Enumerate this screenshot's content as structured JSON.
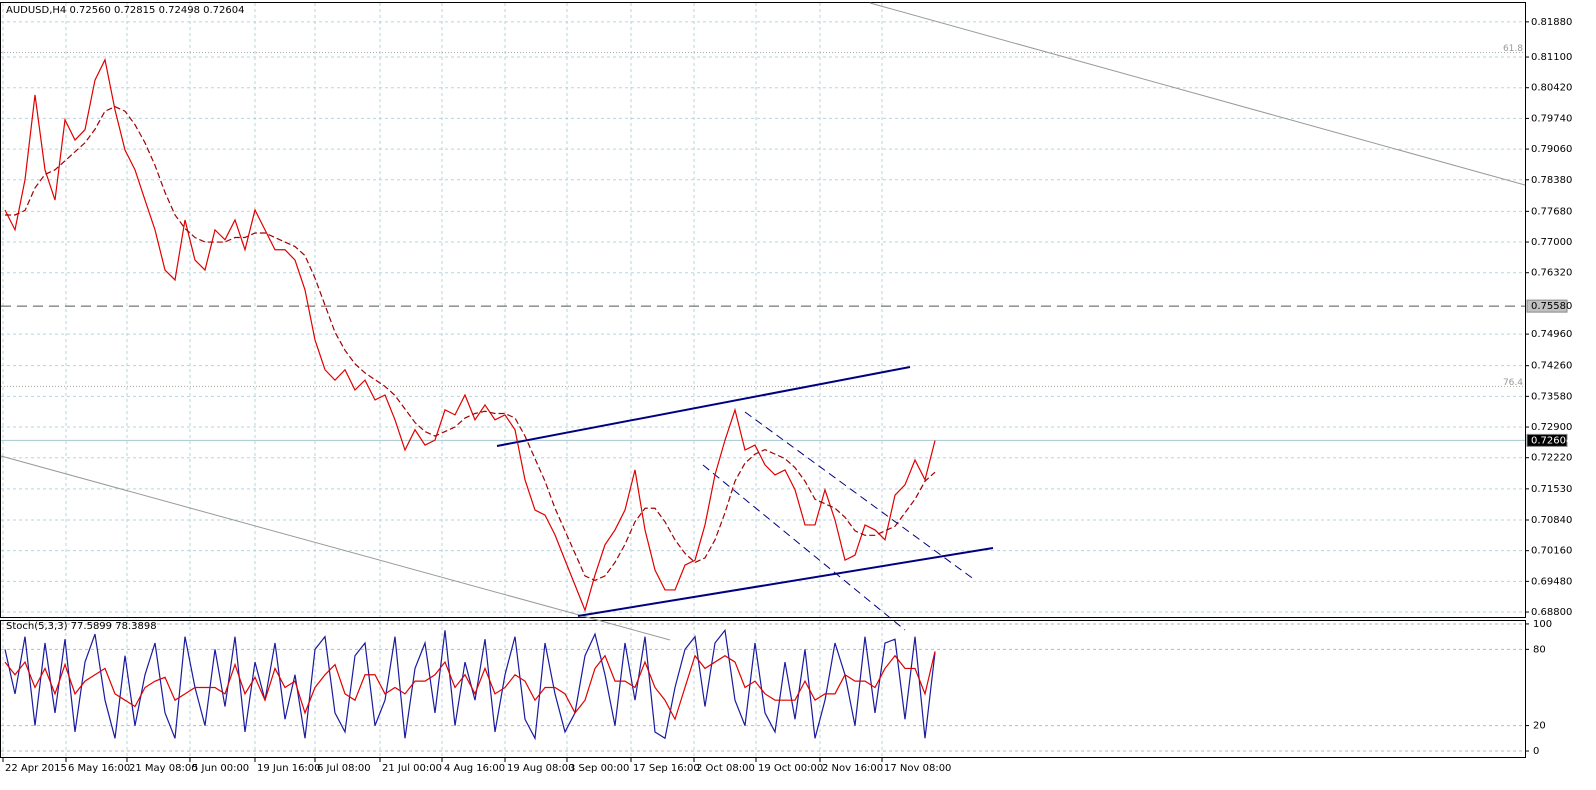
{
  "header": {
    "symbol": "AUDUSD,H4",
    "ohlc": [
      "0.72560",
      "0.72815",
      "0.72498",
      "0.72604"
    ]
  },
  "chart_data": [
    {
      "type": "line",
      "series": [
        {
          "color": "#e00000",
          "style": "solid",
          "values": [
            0.7771,
            0.7727,
            0.7838,
            0.8026,
            0.786,
            0.7793,
            0.7971,
            0.7926,
            0.7949,
            0.8059,
            0.8104,
            0.7993,
            0.7904,
            0.786,
            0.7793,
            0.7727,
            0.7638,
            0.7616,
            0.7749,
            0.766,
            0.7638,
            0.7727,
            0.7705,
            0.7749,
            0.7683,
            0.7771,
            0.7727,
            0.7683,
            0.7683,
            0.766,
            0.7594,
            0.7483,
            0.7417,
            0.7394,
            0.7417,
            0.7372,
            0.7394,
            0.735,
            0.7361,
            0.7306,
            0.7239,
            0.7284,
            0.725,
            0.7261,
            0.7328,
            0.7317,
            0.7361,
            0.7306,
            0.7339,
            0.7306,
            0.7317,
            0.7284,
            0.7173,
            0.7106,
            0.7095,
            0.7051,
            0.6995,
            0.694,
            0.6884,
            0.6962,
            0.7029,
            0.7062,
            0.7106,
            0.7195,
            0.7062,
            0.6973,
            0.6929,
            0.6929,
            0.6984,
            0.6995,
            0.7073,
            0.7184,
            0.7261,
            0.7328,
            0.7239,
            0.725,
            0.7206,
            0.7184,
            0.7195,
            0.7151,
            0.7073,
            0.7073,
            0.7151,
            0.7084,
            0.6995,
            0.7006,
            0.7073,
            0.7062,
            0.704,
            0.7139,
            0.7162,
            0.7217,
            0.7173,
            0.726
          ]
        },
        {
          "color": "#a00000",
          "style": "dashed",
          "values": [
            0.776,
            0.776,
            0.777,
            0.782,
            0.785,
            0.786,
            0.788,
            0.79,
            0.792,
            0.795,
            0.799,
            0.8,
            0.799,
            0.796,
            0.792,
            0.787,
            0.781,
            0.776,
            0.773,
            0.771,
            0.77,
            0.77,
            0.77,
            0.771,
            0.771,
            0.772,
            0.772,
            0.771,
            0.77,
            0.769,
            0.767,
            0.762,
            0.756,
            0.75,
            0.746,
            0.743,
            0.741,
            0.7395,
            0.738,
            0.736,
            0.733,
            0.73,
            0.728,
            0.727,
            0.728,
            0.729,
            0.731,
            0.732,
            0.7325,
            0.732,
            0.732,
            0.731,
            0.727,
            0.722,
            0.717,
            0.711,
            0.706,
            0.701,
            0.696,
            0.695,
            0.696,
            0.699,
            0.703,
            0.708,
            0.711,
            0.711,
            0.708,
            0.704,
            0.701,
            0.699,
            0.7,
            0.704,
            0.71,
            0.717,
            0.721,
            0.723,
            0.724,
            0.723,
            0.722,
            0.72,
            0.717,
            0.713,
            0.712,
            0.711,
            0.709,
            0.706,
            0.705,
            0.705,
            0.706,
            0.707,
            0.71,
            0.713,
            0.717,
            0.719
          ]
        }
      ],
      "xlim": [
        -0.5,
        152
      ],
      "xticks": [
        {
          "value": -0.2,
          "label": "22 Apr 2015"
        },
        {
          "value": 6.1,
          "label": "6 May 16:00"
        },
        {
          "value": 12.2,
          "label": "21 May 08:00"
        },
        {
          "value": 18.5,
          "label": "5 Jun 00:00"
        },
        {
          "value": 25,
          "label": "19 Jun 16:00"
        },
        {
          "value": 31,
          "label": "6 Jul 08:00"
        },
        {
          "value": 37.5,
          "label": "21 Jul 00:00"
        },
        {
          "value": 43.7,
          "label": "4 Aug 16:00"
        },
        {
          "value": 50,
          "label": "19 Aug 08:00"
        },
        {
          "value": 56.2,
          "label": "3 Sep 00:00"
        },
        {
          "value": 62.6,
          "label": "17 Sep 16:00"
        },
        {
          "value": 68.9,
          "label": "2 Oct 08:00"
        },
        {
          "value": 75.1,
          "label": "19 Oct 00:00"
        },
        {
          "value": 81.5,
          "label": "2 Nov 16:00"
        },
        {
          "value": 87.7,
          "label": "17 Nov 08:00"
        }
      ],
      "ylim": [
        0.6869,
        0.8232
      ],
      "yticks": [
        {
          "value": 0.8188,
          "label": "0.81880"
        },
        {
          "value": 0.811,
          "label": "0.81100"
        },
        {
          "value": 0.8042,
          "label": "0.80420"
        },
        {
          "value": 0.7974,
          "label": "0.79740"
        },
        {
          "value": 0.7906,
          "label": "0.79060"
        },
        {
          "value": 0.7838,
          "label": "0.78380"
        },
        {
          "value": 0.7768,
          "label": "0.77680"
        },
        {
          "value": 0.77,
          "label": "0.77000"
        },
        {
          "value": 0.7632,
          "label": "0.76320"
        },
        {
          "value": 0.7496,
          "label": "0.74960"
        },
        {
          "value": 0.7426,
          "label": "0.74260"
        },
        {
          "value": 0.7358,
          "label": "0.73580"
        },
        {
          "value": 0.729,
          "label": "0.72900"
        },
        {
          "value": 0.7222,
          "label": "0.72220"
        },
        {
          "value": 0.7153,
          "label": "0.71530"
        },
        {
          "value": 0.7084,
          "label": "0.70840"
        },
        {
          "value": 0.7016,
          "label": "0.70160"
        },
        {
          "value": 0.6948,
          "label": "0.69480"
        },
        {
          "value": 0.688,
          "label": "0.68800"
        }
      ],
      "grid": true,
      "level_line": {
        "value": 0.7558,
        "label": "0.75580"
      },
      "price_line": {
        "value": 0.72604,
        "label": "0.72604"
      },
      "fibo": [
        {
          "level": 61.8,
          "price": 0.812
        },
        {
          "level": 76.4,
          "price": 0.738
        }
      ]
    },
    {
      "type": "line",
      "title": "Stoch(5,3,3)",
      "series": [
        {
          "color": "#1a1aa0",
          "style": "solid",
          "values": [
            80,
            45,
            90,
            20,
            85,
            30,
            88,
            15,
            70,
            92,
            40,
            10,
            75,
            20,
            60,
            85,
            30,
            10,
            90,
            50,
            20,
            80,
            35,
            90,
            15,
            70,
            40,
            85,
            25,
            60,
            10,
            80,
            90,
            30,
            15,
            75,
            85,
            20,
            40,
            90,
            10,
            65,
            85,
            30,
            95,
            20,
            70,
            40,
            88,
            15,
            60,
            90,
            25,
            10,
            85,
            45,
            15,
            30,
            75,
            92,
            60,
            20,
            85,
            40,
            90,
            15,
            10,
            50,
            80,
            90,
            35,
            85,
            95,
            40,
            20,
            85,
            30,
            15,
            70,
            25,
            80,
            10,
            40,
            85,
            60,
            20,
            90,
            30,
            85,
            88,
            25,
            90,
            10,
            77.5899
          ]
        },
        {
          "color": "#e00000",
          "style": "solid",
          "values": [
            70,
            60,
            70,
            50,
            65,
            45,
            68,
            45,
            55,
            60,
            65,
            45,
            40,
            35,
            50,
            55,
            58,
            40,
            45,
            50,
            50,
            50,
            45,
            68,
            45,
            58,
            40,
            65,
            50,
            55,
            30,
            50,
            60,
            68,
            45,
            40,
            60,
            60,
            45,
            50,
            45,
            55,
            55,
            60,
            70,
            50,
            60,
            45,
            65,
            45,
            50,
            60,
            55,
            40,
            50,
            50,
            45,
            30,
            40,
            65,
            75,
            55,
            55,
            50,
            70,
            50,
            40,
            25,
            50,
            75,
            65,
            70,
            75,
            70,
            50,
            55,
            45,
            40,
            40,
            40,
            55,
            40,
            45,
            45,
            60,
            55,
            55,
            50,
            65,
            75,
            65,
            65,
            45,
            78.3898
          ]
        }
      ],
      "ylim": [
        -4.7,
        103.1
      ],
      "yticks": [
        100,
        80,
        20,
        0
      ],
      "grid": true
    }
  ]
}
